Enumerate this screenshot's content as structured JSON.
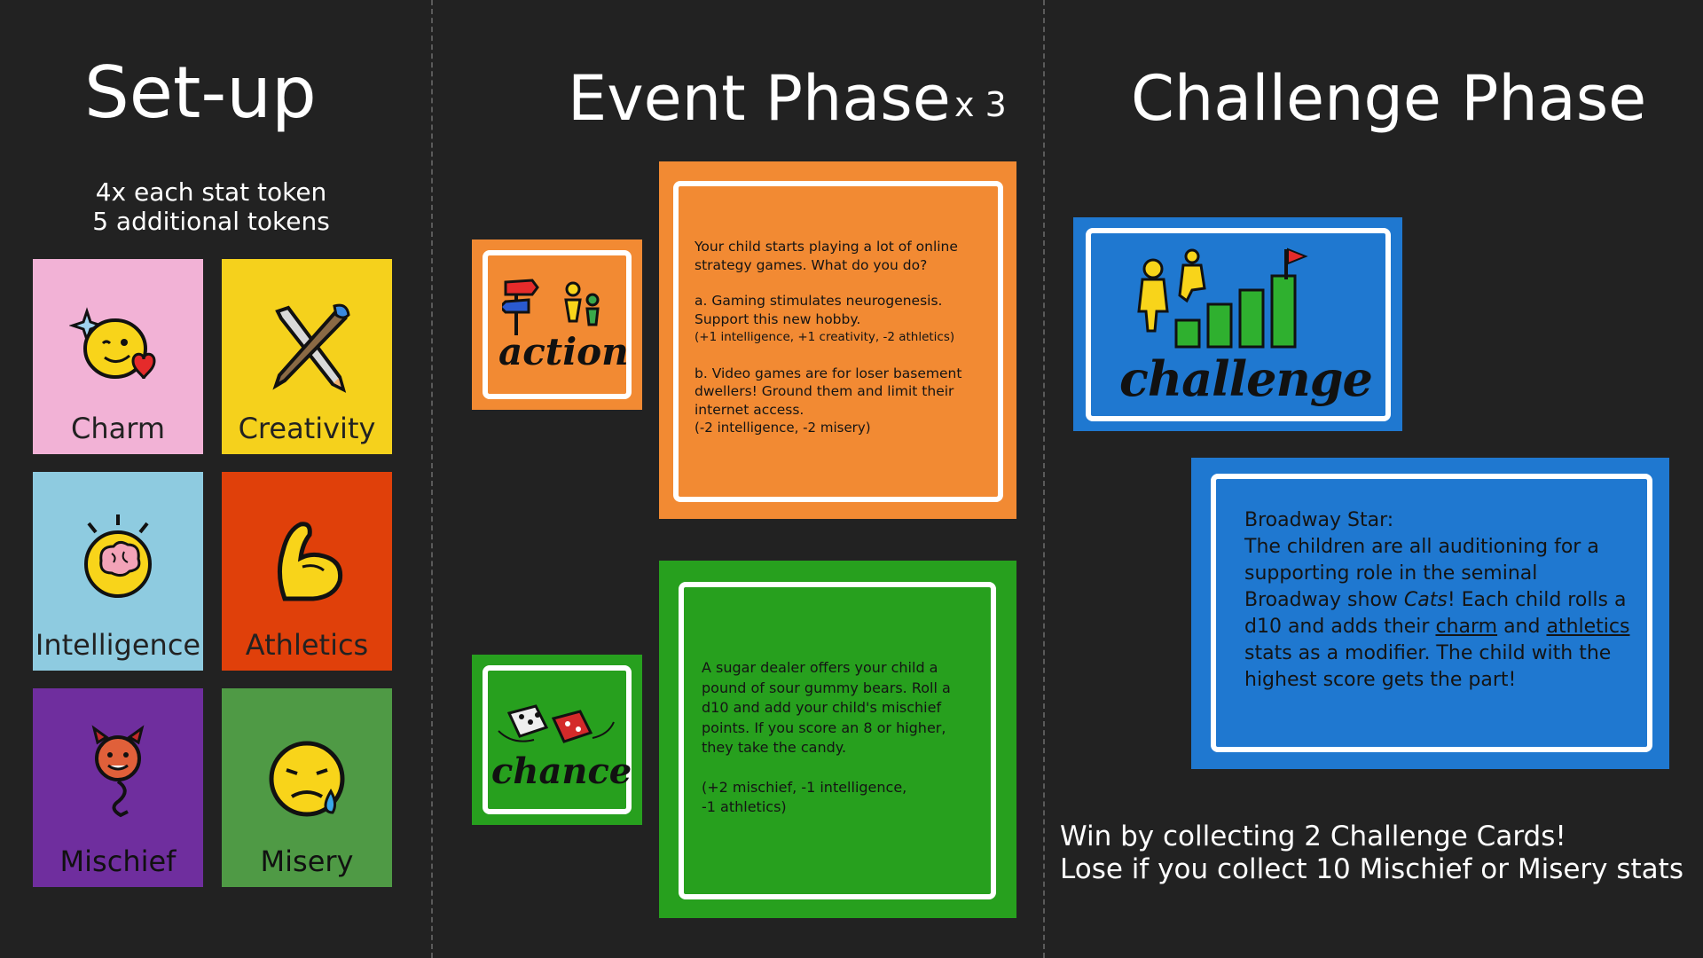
{
  "setup": {
    "title": "Set-up",
    "subtitle_line1": "4x each stat token",
    "subtitle_line2": "5 additional tokens",
    "tokens": [
      {
        "label": "Charm",
        "color": "#f2b2d6",
        "icon": "smiling-face-heart-icon"
      },
      {
        "label": "Creativity",
        "color": "#f5d11c",
        "icon": "pencil-brush-icon"
      },
      {
        "label": "Intelligence",
        "color": "#8ecbe0",
        "icon": "brain-head-icon"
      },
      {
        "label": "Athletics",
        "color": "#e0400a",
        "icon": "flexed-bicep-icon"
      },
      {
        "label": "Mischief",
        "color": "#6f2e9e",
        "icon": "devil-icon"
      },
      {
        "label": "Misery",
        "color": "#4f9a45",
        "icon": "sad-face-icon"
      }
    ]
  },
  "event": {
    "title": "Event Phase",
    "multiplier": "x 3",
    "action_card": {
      "logo_text": "action",
      "color": "#f28a33",
      "text": {
        "question": "Your child starts playing a lot of online strategy games. What do you do?",
        "option_a": "a. Gaming stimulates neurogenesis. Support this new hobby.",
        "option_a_effect": "(+1 intelligence, +1 creativity, -2 athletics)",
        "option_b": "b. Video games are for loser basement dwellers! Ground them and limit their internet access.",
        "option_b_effect": "(-2 intelligence, -2 misery)"
      }
    },
    "chance_card": {
      "logo_text": "chance",
      "color": "#27a01e",
      "text": {
        "body": "A sugar dealer offers your child a pound of sour gummy bears. Roll a d10 and add your child's mischief points. If you score an 8 or higher, they take the candy.",
        "effect_line1": "(+2 mischief, -1 intelligence,",
        "effect_line2": "-1 athletics)"
      }
    }
  },
  "challenge": {
    "title": "Challenge Phase",
    "logo_text": "challenge",
    "color": "#1f78d0",
    "card": {
      "title": "Broadway Star:",
      "t1": "The children are all auditioning for a supporting role in the seminal Broadway show ",
      "show": "Cats",
      "t2": "! Each child rolls a d10 and adds their ",
      "stat1": "charm",
      "t3": " and ",
      "stat2": "athletics",
      "t4": " stats as a modifier. The child with the highest score gets the part!"
    },
    "win_text": "Win by collecting 2 Challenge Cards!",
    "lose_text": "Lose if you collect 10 Mischief or Misery stats"
  }
}
